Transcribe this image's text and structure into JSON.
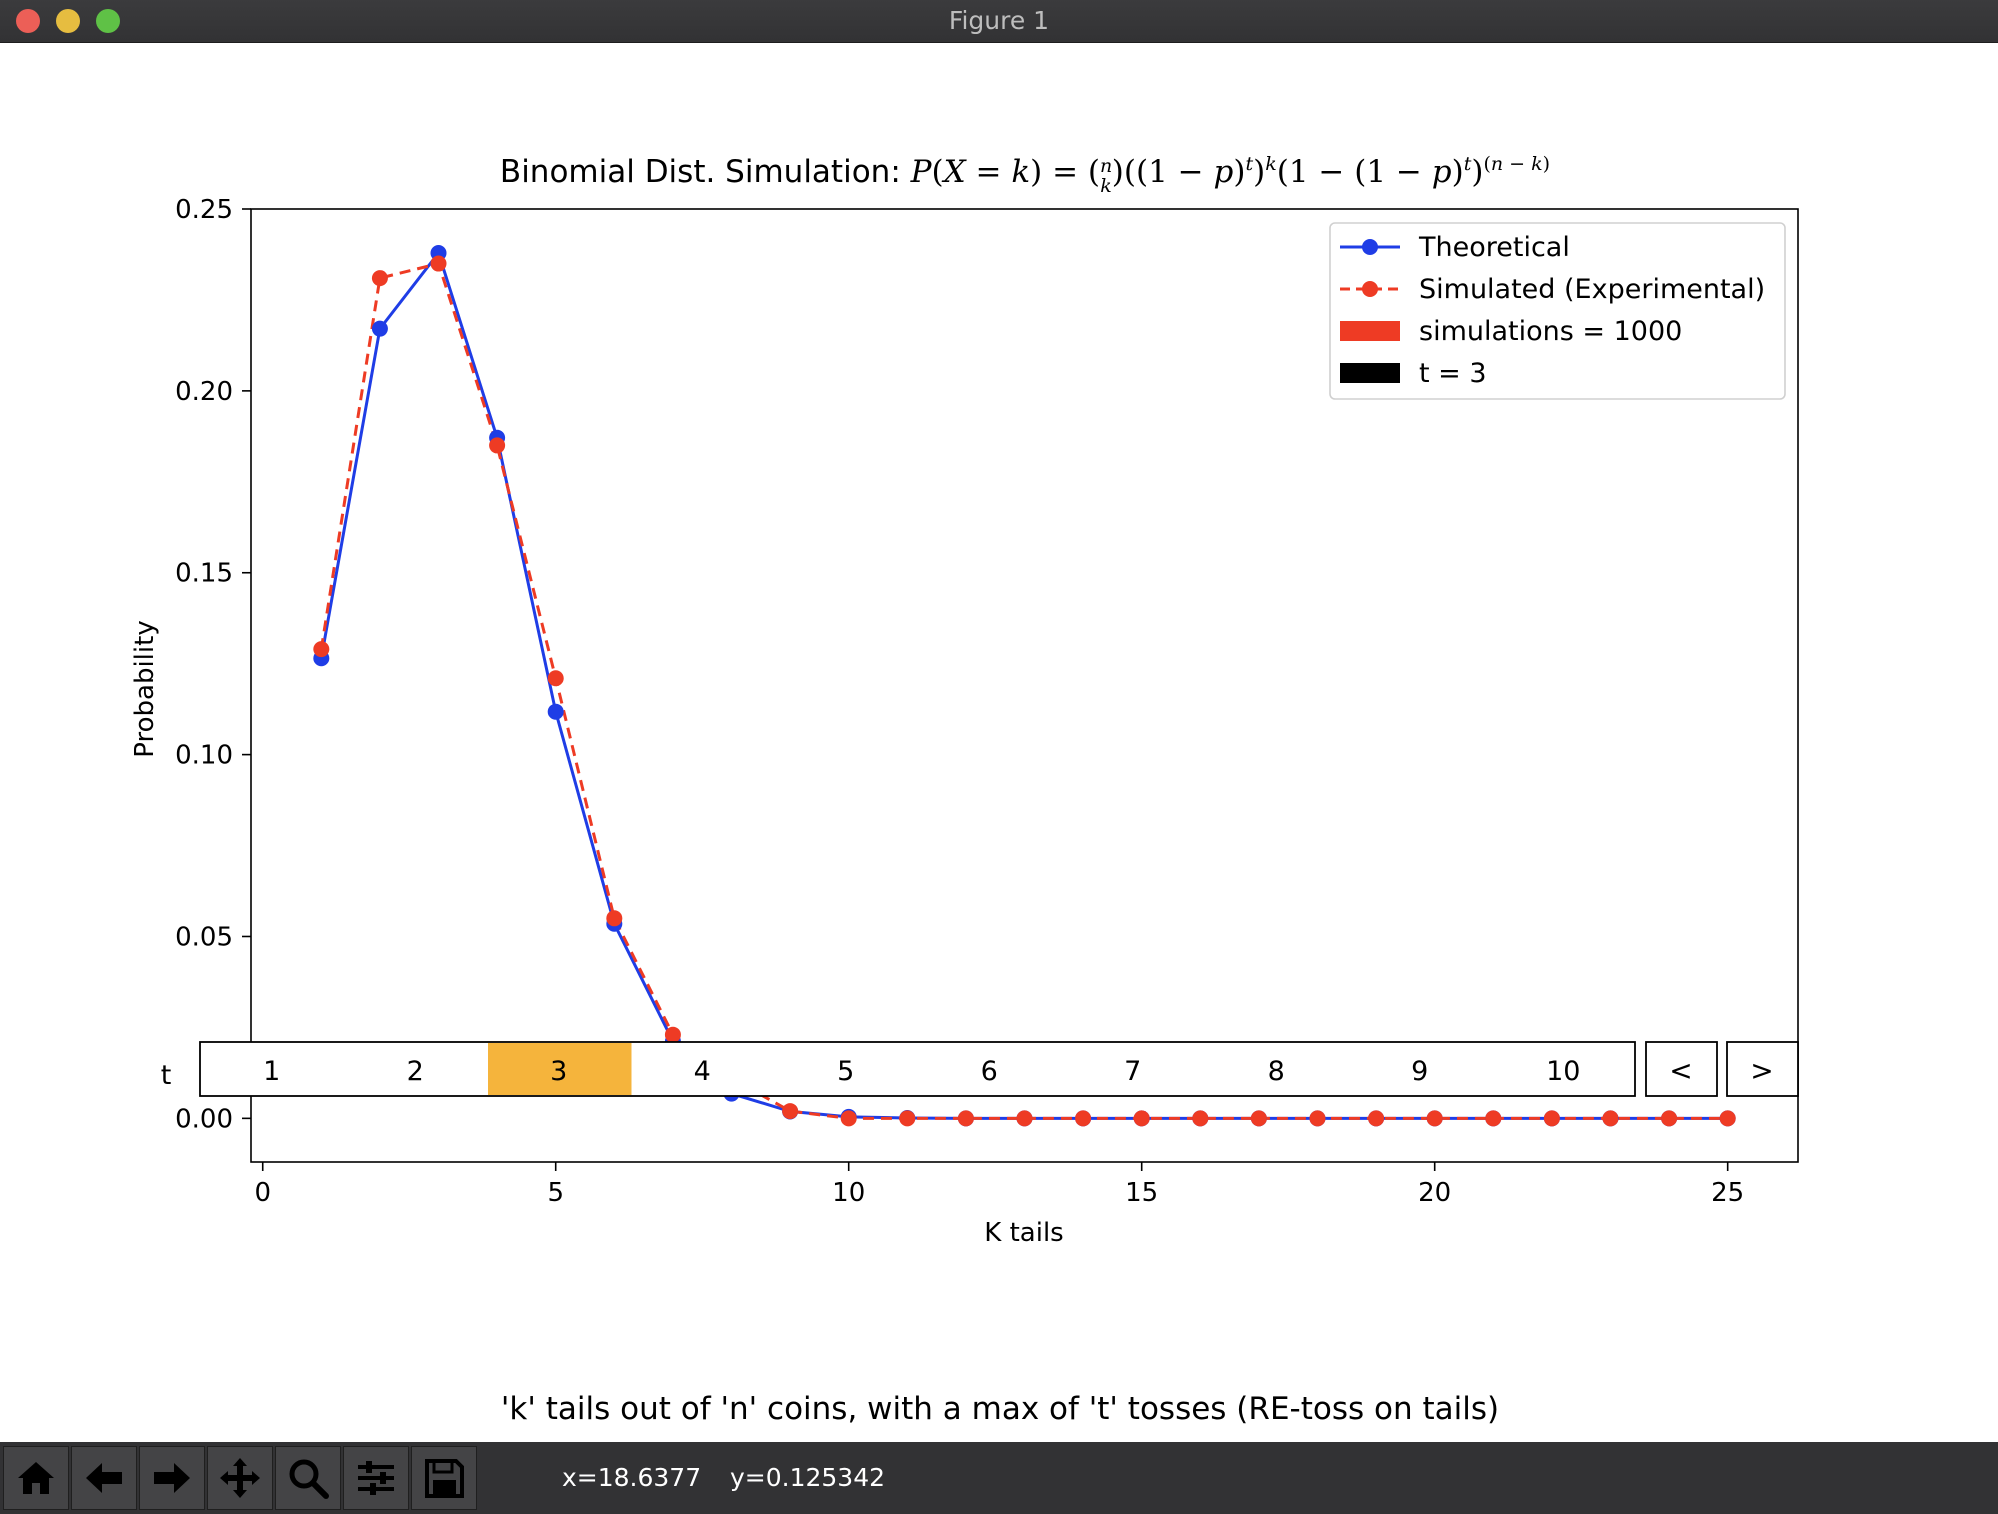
{
  "window": {
    "title": "Figure 1"
  },
  "figure": {
    "title_prefix": "Binomial Dist. Simulation: ",
    "caption": "'k' tails out of 'n' coins, with a max of 't' tosses (RE-toss on tails)"
  },
  "chart_data": {
    "type": "line",
    "xlabel": "K tails",
    "ylabel": "Probability",
    "xlim": [
      -0.2,
      26.2
    ],
    "ylim": [
      -0.012,
      0.25
    ],
    "xticks": [
      0,
      5,
      10,
      15,
      20,
      25
    ],
    "yticks": [
      0.0,
      0.05,
      0.1,
      0.15,
      0.2,
      0.25
    ],
    "ytick_labels": [
      "0.00",
      "0.05",
      "0.10",
      "0.15",
      "0.20",
      "0.25"
    ],
    "grid": false,
    "legend_position": "top-right",
    "x": [
      1,
      2,
      3,
      4,
      5,
      6,
      7,
      8,
      9,
      10,
      11,
      12,
      13,
      14,
      15,
      16,
      17,
      18,
      19,
      20,
      21,
      22,
      23,
      24,
      25
    ],
    "series": [
      {
        "name": "Theoretical",
        "color": "#1f3de6",
        "style": "solid",
        "values": [
          0.1265,
          0.2171,
          0.2379,
          0.1871,
          0.1118,
          0.0535,
          0.0212,
          0.0068,
          0.0019,
          0.0004,
          0.0001,
          0,
          0,
          0,
          0,
          0,
          0,
          0,
          0,
          0,
          0,
          0,
          0,
          0,
          0
        ]
      },
      {
        "name": "Simulated (Experimental)",
        "color": "#ee3b24",
        "style": "dashed",
        "values": [
          0.129,
          0.231,
          0.235,
          0.185,
          0.121,
          0.055,
          0.023,
          0.011,
          0.002,
          0,
          0,
          0,
          0,
          0,
          0,
          0,
          0,
          0,
          0,
          0,
          0,
          0,
          0,
          0,
          0
        ]
      }
    ],
    "legend_extra": [
      {
        "label": "simulations = 1000",
        "color": "#ee3b24"
      },
      {
        "label": "t = 3",
        "color": "#000000"
      }
    ]
  },
  "slider": {
    "label": "t",
    "options": [
      "1",
      "2",
      "3",
      "4",
      "5",
      "6",
      "7",
      "8",
      "9",
      "10"
    ],
    "selected": 3,
    "selected_color": "#f5b43c",
    "prev_label": "<",
    "next_label": ">"
  },
  "toolbar": {
    "buttons": [
      "home-icon",
      "back-arrow-icon",
      "forward-arrow-icon",
      "pan-icon",
      "zoom-icon",
      "configure-subplots-icon",
      "save-icon"
    ],
    "x_readout": "x=18.6377",
    "y_readout": "y=0.125342"
  }
}
